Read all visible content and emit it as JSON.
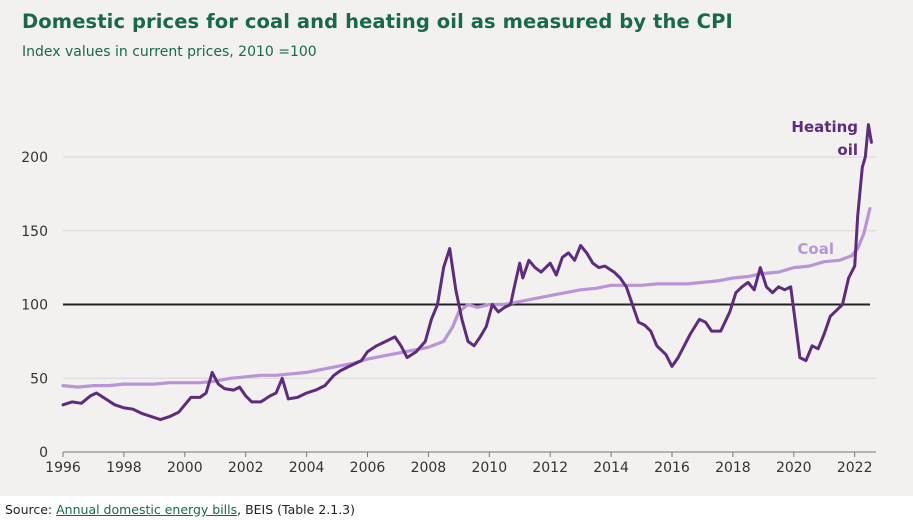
{
  "title": "Domestic prices for coal and heating oil as measured by the CPI",
  "subtitle": "Index values in current prices, 2010 =100",
  "source": {
    "prefix": "Source: ",
    "link_text": "Annual domestic energy bills",
    "suffix": ", BEIS (Table 2.1.3)"
  },
  "colors": {
    "background": "#f2f1ef",
    "title": "#17694a",
    "heating_oil": "#5e2b7e",
    "coal": "#b994d8",
    "reference_line": "#222222",
    "grid": "#d9d8d5"
  },
  "chart_data": {
    "type": "line",
    "title": "Domestic prices for coal and heating oil as measured by the CPI",
    "subtitle": "Index values in current prices, 2010 =100",
    "xlabel": "",
    "ylabel": "",
    "xlim": [
      1996,
      2022.7
    ],
    "ylim": [
      0,
      240
    ],
    "x_ticks": [
      1996,
      1998,
      2000,
      2002,
      2004,
      2006,
      2008,
      2010,
      2012,
      2014,
      2016,
      2018,
      2020,
      2022
    ],
    "y_ticks": [
      0,
      50,
      100,
      150,
      200
    ],
    "grid": "horizontal",
    "reference_line": 100,
    "series": [
      {
        "name": "Heating oil",
        "label_lines": [
          "Heating",
          "oil"
        ],
        "points": [
          [
            1996.0,
            32
          ],
          [
            1996.3,
            34
          ],
          [
            1996.6,
            33
          ],
          [
            1996.9,
            38
          ],
          [
            1997.1,
            40
          ],
          [
            1997.4,
            36
          ],
          [
            1997.7,
            32
          ],
          [
            1998.0,
            30
          ],
          [
            1998.3,
            29
          ],
          [
            1998.6,
            26
          ],
          [
            1998.9,
            24
          ],
          [
            1999.2,
            22
          ],
          [
            1999.5,
            24
          ],
          [
            1999.8,
            27
          ],
          [
            2000.0,
            32
          ],
          [
            2000.2,
            37
          ],
          [
            2000.5,
            37
          ],
          [
            2000.7,
            40
          ],
          [
            2000.9,
            54
          ],
          [
            2001.1,
            46
          ],
          [
            2001.3,
            43
          ],
          [
            2001.6,
            42
          ],
          [
            2001.8,
            44
          ],
          [
            2002.0,
            38
          ],
          [
            2002.2,
            34
          ],
          [
            2002.5,
            34
          ],
          [
            2002.8,
            38
          ],
          [
            2003.0,
            40
          ],
          [
            2003.2,
            50
          ],
          [
            2003.4,
            36
          ],
          [
            2003.7,
            37
          ],
          [
            2004.0,
            40
          ],
          [
            2004.3,
            42
          ],
          [
            2004.6,
            45
          ],
          [
            2004.9,
            52
          ],
          [
            2005.1,
            55
          ],
          [
            2005.4,
            58
          ],
          [
            2005.6,
            60
          ],
          [
            2005.8,
            62
          ],
          [
            2006.0,
            68
          ],
          [
            2006.3,
            72
          ],
          [
            2006.6,
            75
          ],
          [
            2006.9,
            78
          ],
          [
            2007.1,
            72
          ],
          [
            2007.3,
            64
          ],
          [
            2007.6,
            68
          ],
          [
            2007.9,
            75
          ],
          [
            2008.1,
            90
          ],
          [
            2008.3,
            100
          ],
          [
            2008.5,
            125
          ],
          [
            2008.7,
            138
          ],
          [
            2008.9,
            110
          ],
          [
            2009.1,
            90
          ],
          [
            2009.3,
            75
          ],
          [
            2009.5,
            72
          ],
          [
            2009.7,
            78
          ],
          [
            2009.9,
            85
          ],
          [
            2010.1,
            100
          ],
          [
            2010.3,
            95
          ],
          [
            2010.5,
            98
          ],
          [
            2010.7,
            100
          ],
          [
            2010.8,
            110
          ],
          [
            2011.0,
            128
          ],
          [
            2011.1,
            118
          ],
          [
            2011.3,
            130
          ],
          [
            2011.5,
            125
          ],
          [
            2011.7,
            122
          ],
          [
            2012.0,
            128
          ],
          [
            2012.2,
            120
          ],
          [
            2012.4,
            132
          ],
          [
            2012.6,
            135
          ],
          [
            2012.8,
            130
          ],
          [
            2013.0,
            140
          ],
          [
            2013.2,
            135
          ],
          [
            2013.4,
            128
          ],
          [
            2013.6,
            125
          ],
          [
            2013.8,
            126
          ],
          [
            2014.1,
            122
          ],
          [
            2014.3,
            118
          ],
          [
            2014.5,
            112
          ],
          [
            2014.7,
            100
          ],
          [
            2014.9,
            88
          ],
          [
            2015.1,
            86
          ],
          [
            2015.3,
            82
          ],
          [
            2015.5,
            72
          ],
          [
            2015.8,
            66
          ],
          [
            2016.0,
            58
          ],
          [
            2016.2,
            64
          ],
          [
            2016.4,
            72
          ],
          [
            2016.6,
            80
          ],
          [
            2016.9,
            90
          ],
          [
            2017.1,
            88
          ],
          [
            2017.3,
            82
          ],
          [
            2017.6,
            82
          ],
          [
            2017.9,
            95
          ],
          [
            2018.1,
            108
          ],
          [
            2018.3,
            112
          ],
          [
            2018.5,
            115
          ],
          [
            2018.7,
            110
          ],
          [
            2018.9,
            125
          ],
          [
            2019.1,
            112
          ],
          [
            2019.3,
            108
          ],
          [
            2019.5,
            112
          ],
          [
            2019.7,
            110
          ],
          [
            2019.9,
            112
          ],
          [
            2020.0,
            96
          ],
          [
            2020.2,
            64
          ],
          [
            2020.4,
            62
          ],
          [
            2020.6,
            72
          ],
          [
            2020.8,
            70
          ],
          [
            2021.0,
            80
          ],
          [
            2021.2,
            92
          ],
          [
            2021.4,
            96
          ],
          [
            2021.6,
            100
          ],
          [
            2021.8,
            118
          ],
          [
            2022.0,
            126
          ],
          [
            2022.1,
            160
          ],
          [
            2022.25,
            193
          ],
          [
            2022.35,
            200
          ],
          [
            2022.45,
            222
          ],
          [
            2022.55,
            210
          ]
        ]
      },
      {
        "name": "Coal",
        "label_lines": [
          "Coal"
        ],
        "points": [
          [
            1996.0,
            45
          ],
          [
            1996.5,
            44
          ],
          [
            1997.0,
            45
          ],
          [
            1997.5,
            45
          ],
          [
            1998.0,
            46
          ],
          [
            1998.5,
            46
          ],
          [
            1999.0,
            46
          ],
          [
            1999.5,
            47
          ],
          [
            2000.0,
            47
          ],
          [
            2000.5,
            47
          ],
          [
            2001.0,
            48
          ],
          [
            2001.5,
            50
          ],
          [
            2002.0,
            51
          ],
          [
            2002.5,
            52
          ],
          [
            2003.0,
            52
          ],
          [
            2003.5,
            53
          ],
          [
            2004.0,
            54
          ],
          [
            2004.5,
            56
          ],
          [
            2005.0,
            58
          ],
          [
            2005.5,
            60
          ],
          [
            2006.0,
            63
          ],
          [
            2006.5,
            65
          ],
          [
            2007.0,
            67
          ],
          [
            2007.5,
            69
          ],
          [
            2008.0,
            71
          ],
          [
            2008.5,
            75
          ],
          [
            2008.8,
            85
          ],
          [
            2009.0,
            95
          ],
          [
            2009.3,
            100
          ],
          [
            2009.6,
            98
          ],
          [
            2010.0,
            100
          ],
          [
            2010.5,
            100
          ],
          [
            2011.0,
            102
          ],
          [
            2011.5,
            104
          ],
          [
            2012.0,
            106
          ],
          [
            2012.5,
            108
          ],
          [
            2013.0,
            110
          ],
          [
            2013.5,
            111
          ],
          [
            2014.0,
            113
          ],
          [
            2014.5,
            113
          ],
          [
            2015.0,
            113
          ],
          [
            2015.5,
            114
          ],
          [
            2016.0,
            114
          ],
          [
            2016.5,
            114
          ],
          [
            2017.0,
            115
          ],
          [
            2017.5,
            116
          ],
          [
            2018.0,
            118
          ],
          [
            2018.5,
            119
          ],
          [
            2019.0,
            121
          ],
          [
            2019.5,
            122
          ],
          [
            2020.0,
            125
          ],
          [
            2020.5,
            126
          ],
          [
            2021.0,
            129
          ],
          [
            2021.5,
            130
          ],
          [
            2021.9,
            133
          ],
          [
            2022.1,
            138
          ],
          [
            2022.3,
            148
          ],
          [
            2022.5,
            165
          ]
        ]
      }
    ]
  }
}
